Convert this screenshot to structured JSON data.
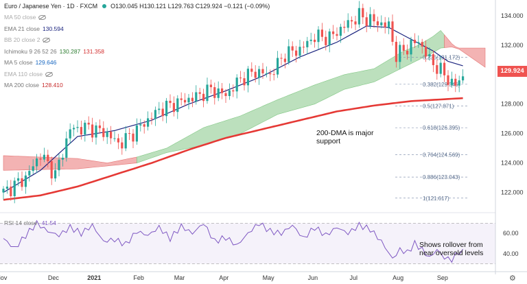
{
  "header": {
    "symbol": "Euro / Japanese Yen · 1D · FXCM",
    "ohlc": "O130.045  H130.121  L129.763  C129.924  −0.121 (−0.09%)"
  },
  "indicators": [
    {
      "label": "MA 50 close",
      "value": "",
      "hidden": true
    },
    {
      "label": "EMA 21 close",
      "value": "130.594",
      "color": "#1a237e"
    },
    {
      "label": "BB 20 close 2",
      "value": "",
      "hidden": true
    },
    {
      "label": "Ichimoku 9 26 52 26",
      "value": "130.287",
      "value2": "131.358",
      "color": "#2e7d32",
      "color2": "#d32f2f"
    },
    {
      "label": "MA 5 close",
      "value": "129.646",
      "color": "#1565c0"
    },
    {
      "label": "EMA 110 close",
      "value": "",
      "hidden": true
    },
    {
      "label": "MA 200 close",
      "value": "128.410",
      "color": "#c62828"
    }
  ],
  "price_axis": [
    "134.000",
    "132.000",
    "130.000",
    "128.000",
    "126.000",
    "124.000",
    "122.000"
  ],
  "last_price": "129.924",
  "rsi_legend": {
    "label": "RSI 14 close",
    "value": "41.54"
  },
  "rsi_axis": [
    "60.00",
    "40.00"
  ],
  "x_axis": [
    "Nov",
    "Dec",
    "2021",
    "Feb",
    "Mar",
    "Apr",
    "May",
    "Jun",
    "Jul",
    "Aug",
    "Sep"
  ],
  "fib_levels": [
    {
      "label": "0.236(131.172)",
      "price": 131.172
    },
    {
      "label": "0.382(129.346)",
      "price": 129.346
    },
    {
      "label": "0.5(127.871)",
      "price": 127.871
    },
    {
      "label": "0.618(126.395)",
      "price": 126.395
    },
    {
      "label": "0.764(124.569)",
      "price": 124.569
    },
    {
      "label": "0.886(123.043)",
      "price": 123.043
    },
    {
      "label": "1(121.617)",
      "price": 121.617
    }
  ],
  "annotations": {
    "dma": [
      "200-DMA is major",
      "support"
    ],
    "rsi": [
      "Shows rollover from",
      "near oversold levels"
    ]
  },
  "colors": {
    "up": "#26a69a",
    "down": "#ef5350",
    "ema21": "#1a237e",
    "ma200": "#e53935",
    "rsi": "#7e57c2",
    "cloud_bull": "#a5d6a7",
    "cloud_bear": "#ef9a9a",
    "fib": "#5b6f8e"
  },
  "chart_data": {
    "type": "candlestick",
    "title": "Euro / Japanese Yen · 1D · FXCM",
    "ylim": [
      121.0,
      134.6
    ],
    "rsi_ylim": [
      25,
      75
    ],
    "x_ticks": [
      "Nov",
      "Dec",
      "2021",
      "Feb",
      "Mar",
      "Apr",
      "May",
      "Jun",
      "Jul",
      "Aug",
      "Sep"
    ],
    "price_path": [
      [
        0,
        122.0
      ],
      [
        6,
        123.0
      ],
      [
        10,
        124.6
      ],
      [
        14,
        123.2
      ],
      [
        18,
        126.3
      ],
      [
        23,
        126.4
      ],
      [
        28,
        126.0
      ],
      [
        31,
        125.3
      ],
      [
        34,
        125.8
      ],
      [
        38,
        126.7
      ],
      [
        42,
        127.6
      ],
      [
        47,
        128.1
      ],
      [
        52,
        128.5
      ],
      [
        56,
        129.0
      ],
      [
        60,
        128.6
      ],
      [
        64,
        129.7
      ],
      [
        68,
        130.2
      ],
      [
        72,
        130.0
      ],
      [
        76,
        131.4
      ],
      [
        80,
        131.7
      ],
      [
        84,
        132.6
      ],
      [
        88,
        132.5
      ],
      [
        92,
        133.3
      ],
      [
        96,
        134.0
      ],
      [
        100,
        133.6
      ],
      [
        104,
        133.3
      ],
      [
        106,
        131.3
      ],
      [
        110,
        132.0
      ],
      [
        112,
        132.3
      ],
      [
        115,
        131.0
      ],
      [
        119,
        130.0
      ],
      [
        121,
        129.4
      ],
      [
        122,
        129.3
      ],
      [
        124,
        129.9
      ]
    ],
    "ema21": [
      [
        0,
        122.0
      ],
      [
        10,
        123.5
      ],
      [
        20,
        125.8
      ],
      [
        30,
        126.2
      ],
      [
        40,
        126.9
      ],
      [
        50,
        128.0
      ],
      [
        60,
        128.9
      ],
      [
        70,
        129.9
      ],
      [
        80,
        131.2
      ],
      [
        90,
        132.2
      ],
      [
        98,
        133.3
      ],
      [
        104,
        133.2
      ],
      [
        110,
        132.4
      ],
      [
        116,
        131.6
      ],
      [
        120,
        130.9
      ],
      [
        124,
        130.6
      ]
    ],
    "ma200": [
      [
        0,
        121.5
      ],
      [
        10,
        121.8
      ],
      [
        20,
        122.4
      ],
      [
        30,
        123.2
      ],
      [
        40,
        124.0
      ],
      [
        50,
        124.9
      ],
      [
        60,
        125.7
      ],
      [
        70,
        126.3
      ],
      [
        80,
        126.9
      ],
      [
        90,
        127.5
      ],
      [
        100,
        127.9
      ],
      [
        110,
        128.2
      ],
      [
        124,
        128.4
      ]
    ],
    "cloud_top": [
      [
        0,
        124.5
      ],
      [
        20,
        124.3
      ],
      [
        28,
        124.0
      ],
      [
        36,
        124.4
      ],
      [
        44,
        125.0
      ],
      [
        54,
        126.4
      ],
      [
        64,
        127.2
      ],
      [
        74,
        128.3
      ],
      [
        84,
        129.3
      ],
      [
        92,
        130.0
      ],
      [
        100,
        130.4
      ],
      [
        104,
        131.0
      ],
      [
        108,
        131.6
      ],
      [
        112,
        132.0
      ],
      [
        116,
        132.6
      ],
      [
        118,
        133.0
      ],
      [
        122,
        131.8
      ],
      [
        130,
        131.8
      ]
    ],
    "cloud_bottom": [
      [
        0,
        123.5
      ],
      [
        20,
        123.6
      ],
      [
        28,
        123.8
      ],
      [
        36,
        124.0
      ],
      [
        44,
        124.7
      ],
      [
        54,
        125.2
      ],
      [
        64,
        126.0
      ],
      [
        74,
        127.3
      ],
      [
        84,
        128.0
      ],
      [
        92,
        129.0
      ],
      [
        100,
        129.5
      ],
      [
        104,
        130.0
      ],
      [
        108,
        130.5
      ],
      [
        112,
        131.0
      ],
      [
        116,
        131.5
      ],
      [
        118,
        131.8
      ],
      [
        122,
        131.9
      ],
      [
        130,
        130.5
      ]
    ],
    "rsi": [
      [
        0,
        55
      ],
      [
        3,
        45
      ],
      [
        6,
        58
      ],
      [
        9,
        70
      ],
      [
        12,
        62
      ],
      [
        15,
        58
      ],
      [
        18,
        66
      ],
      [
        21,
        60
      ],
      [
        24,
        68
      ],
      [
        27,
        52
      ],
      [
        30,
        54
      ],
      [
        33,
        49
      ],
      [
        36,
        62
      ],
      [
        39,
        58
      ],
      [
        42,
        66
      ],
      [
        45,
        55
      ],
      [
        48,
        67
      ],
      [
        51,
        60
      ],
      [
        54,
        70
      ],
      [
        57,
        52
      ],
      [
        60,
        56
      ],
      [
        63,
        48
      ],
      [
        66,
        60
      ],
      [
        69,
        70
      ],
      [
        72,
        62
      ],
      [
        75,
        60
      ],
      [
        78,
        68
      ],
      [
        81,
        55
      ],
      [
        84,
        66
      ],
      [
        87,
        58
      ],
      [
        90,
        66
      ],
      [
        93,
        60
      ],
      [
        96,
        68
      ],
      [
        99,
        64
      ],
      [
        102,
        52
      ],
      [
        105,
        35
      ],
      [
        107,
        44
      ],
      [
        109,
        41
      ],
      [
        111,
        50
      ],
      [
        113,
        44
      ],
      [
        115,
        36
      ],
      [
        117,
        44
      ],
      [
        119,
        36
      ],
      [
        121,
        34
      ],
      [
        123,
        42
      ],
      [
        124,
        41.54
      ]
    ]
  }
}
